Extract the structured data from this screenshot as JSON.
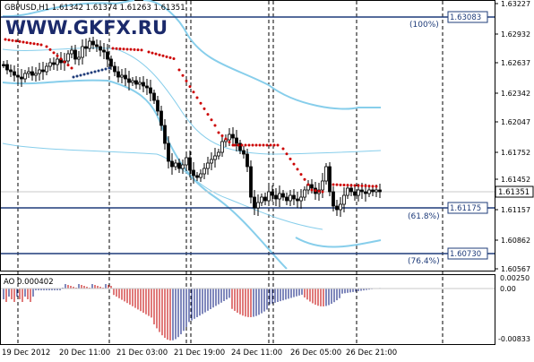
{
  "chart": {
    "symbol_line": "GBPUSD,H1  1.61342 1.61374 1.61263 1.61351",
    "watermark": "WWW.GKFX.RU",
    "right_axis_ticks": [
      "1.63227",
      "1.62932",
      "1.62637",
      "1.62342",
      "1.62047",
      "1.61752",
      "1.61452",
      "1.61157",
      "1.60862",
      "1.60567"
    ],
    "price_tags": {
      "current": "1.61351",
      "level_100": "1.63083",
      "level_618": "1.61175",
      "level_764": "1.60730"
    },
    "fib_labels": {
      "l100": "(100%)",
      "l618": "(61.8%)",
      "l764": "(76.4%)"
    },
    "x_ticks": [
      "19 Dec 2012",
      "20 Dec 11:00",
      "21 Dec 03:00",
      "21 Dec 19:00",
      "24 Dec 11:00",
      "26 Dec 05:00",
      "26 Dec 21:00"
    ]
  },
  "indicator": {
    "label": "AO 0.000402",
    "axis_ticks": [
      "0.00250",
      "0.00",
      "-0.00833"
    ]
  },
  "colors": {
    "candle": "#000000",
    "bands": "#87CEEB",
    "sar": "#cc0000",
    "sar_low": "#1f3c7a",
    "fib_line": "#1f3c7a",
    "ao_up": "#2b3a8f",
    "ao_down": "#cc2222"
  }
}
